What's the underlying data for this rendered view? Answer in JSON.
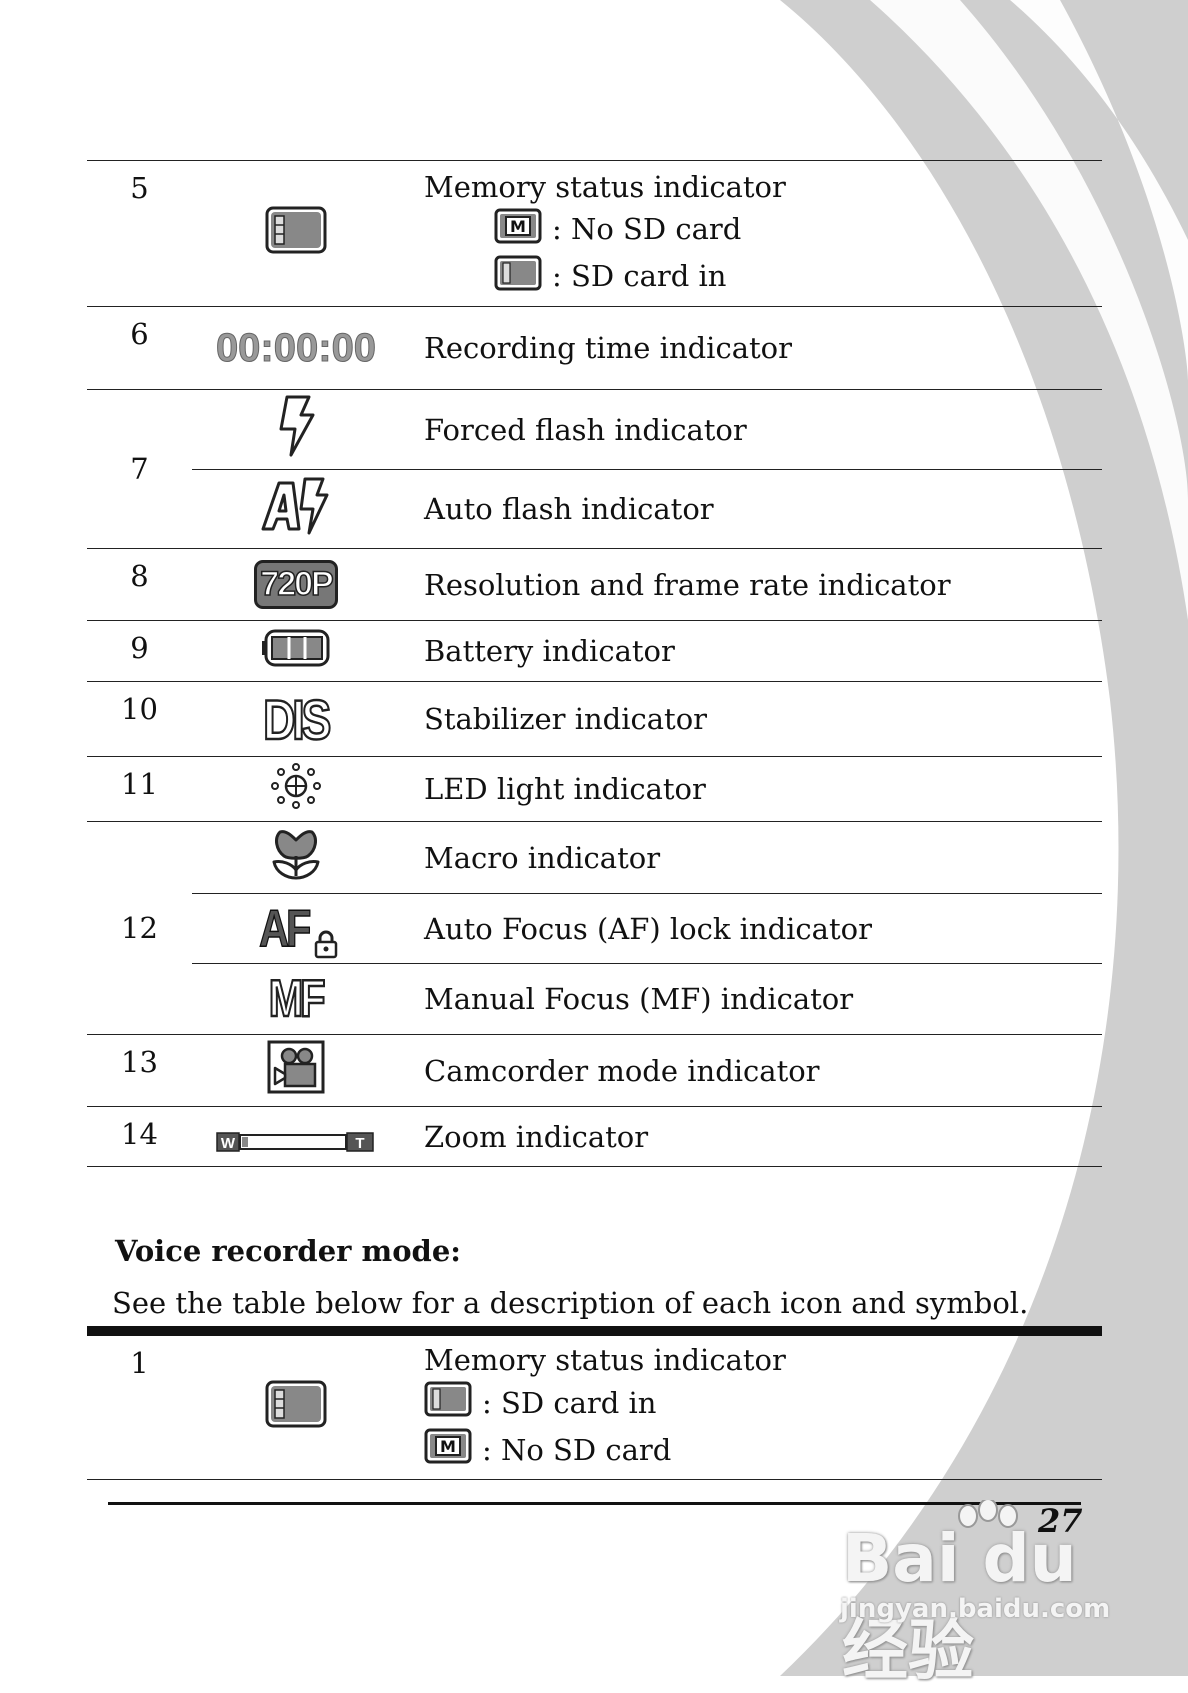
{
  "top_table": {
    "rows": [
      {
        "num": "5",
        "icon": "sd-card-icon",
        "desc": "Memory status indicator",
        "subs": [
          {
            "icon": "no-sd-card-icon",
            "text": ": No SD card"
          },
          {
            "icon": "sd-card-in-icon",
            "text": ": SD card in"
          }
        ]
      },
      {
        "num": "6",
        "icon": "recording-time-icon",
        "icon_text": "00:00:00",
        "desc": "Recording time indicator"
      },
      {
        "num": "7",
        "icon": "forced-flash-icon",
        "desc": "Forced flash indicator"
      },
      {
        "num": "",
        "icon": "auto-flash-icon",
        "desc": "Auto flash indicator"
      },
      {
        "num": "8",
        "icon": "resolution-720p-icon",
        "icon_text": "720P",
        "desc": "Resolution and frame rate indicator"
      },
      {
        "num": "9",
        "icon": "battery-icon",
        "desc": "Battery indicator"
      },
      {
        "num": "10",
        "icon": "dis-stabilizer-icon",
        "icon_text": "DIS",
        "desc": "Stabilizer indicator"
      },
      {
        "num": "11",
        "icon": "led-light-icon",
        "desc": "LED light indicator"
      },
      {
        "num": "12",
        "icon": "macro-flower-icon",
        "desc": "Macro indicator"
      },
      {
        "num": "",
        "icon": "af-lock-icon",
        "icon_text": "AF",
        "desc": "Auto Focus (AF) lock indicator"
      },
      {
        "num": "",
        "icon": "mf-icon",
        "icon_text": "MF",
        "desc": "Manual Focus (MF) indicator"
      },
      {
        "num": "13",
        "icon": "camcorder-icon",
        "desc": "Camcorder mode indicator"
      },
      {
        "num": "14",
        "icon": "zoom-bar-icon",
        "zoom_w": "W",
        "zoom_t": "T",
        "desc": "Zoom indicator"
      }
    ]
  },
  "voice": {
    "title": "Voice recorder mode:",
    "intro": "See the table below for a description of each icon and symbol.",
    "rows": [
      {
        "num": "1",
        "icon": "sd-card-icon",
        "desc": "Memory status indicator",
        "subs": [
          {
            "icon": "sd-card-in-icon",
            "text": ": SD card in"
          },
          {
            "icon": "no-sd-card-icon",
            "text": ": No SD card"
          }
        ]
      }
    ]
  },
  "sd_letter": "M",
  "page_number": "27",
  "watermark": {
    "brand": "Bai du 经验",
    "url": "jingyan.baidu.com"
  }
}
